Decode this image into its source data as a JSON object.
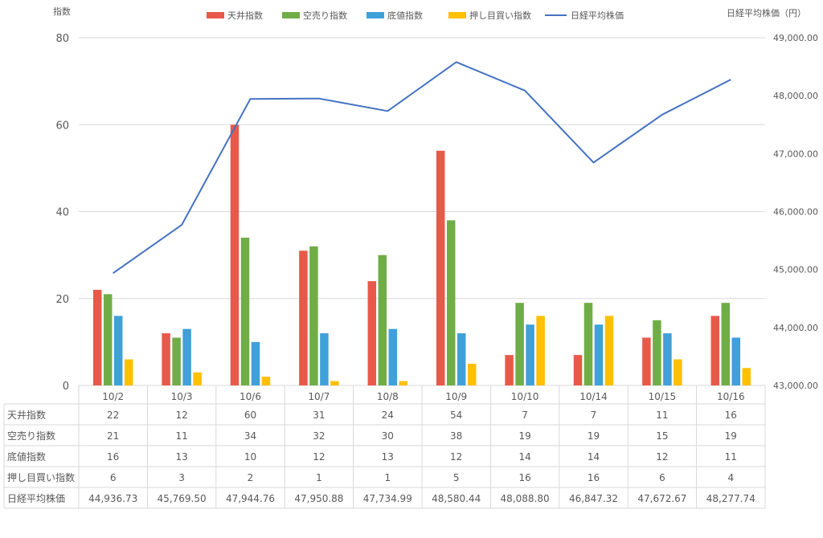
{
  "chart_data": {
    "type": "bar",
    "categories": [
      "10/2",
      "10/3",
      "10/6",
      "10/7",
      "10/8",
      "10/9",
      "10/10",
      "10/14",
      "10/15",
      "10/16"
    ],
    "y_left": {
      "label": "指数",
      "min": 0,
      "max": 80,
      "ticks": [
        "0",
        "20",
        "40",
        "60",
        "80"
      ]
    },
    "y_right": {
      "label": "日経平均株価（円）",
      "min": 43000,
      "max": 49000,
      "ticks": [
        "43,000.00",
        "44,000.00",
        "45,000.00",
        "46,000.00",
        "47,000.00",
        "48,000.00",
        "49,000.00"
      ]
    },
    "series": [
      {
        "name": "天井指数",
        "type": "bar",
        "color": "#e8594a",
        "values": [
          22,
          12,
          60,
          31,
          24,
          54,
          7,
          7,
          11,
          16
        ]
      },
      {
        "name": "空売り指数",
        "type": "bar",
        "color": "#70ad47",
        "values": [
          21,
          11,
          34,
          32,
          30,
          38,
          19,
          19,
          15,
          19
        ]
      },
      {
        "name": "底値指数",
        "type": "bar",
        "color": "#40a0d8",
        "values": [
          16,
          13,
          10,
          12,
          13,
          12,
          14,
          14,
          12,
          11
        ]
      },
      {
        "name": "押し目買い指数",
        "type": "bar",
        "color": "#ffc000",
        "values": [
          6,
          3,
          2,
          1,
          1,
          5,
          16,
          16,
          6,
          4
        ]
      },
      {
        "name": "日経平均株価",
        "type": "line",
        "color": "#4472c4",
        "axis": "right",
        "values": [
          44936.73,
          45769.5,
          47944.76,
          47950.88,
          47734.99,
          48580.44,
          48088.8,
          46847.32,
          47672.67,
          48277.74
        ]
      }
    ],
    "table": {
      "rows": [
        {
          "label": "天井指数",
          "cells": [
            "22",
            "12",
            "60",
            "31",
            "24",
            "54",
            "7",
            "7",
            "11",
            "16"
          ]
        },
        {
          "label": "空売り指数",
          "cells": [
            "21",
            "11",
            "34",
            "32",
            "30",
            "38",
            "19",
            "19",
            "15",
            "19"
          ]
        },
        {
          "label": "底値指数",
          "cells": [
            "16",
            "13",
            "10",
            "12",
            "13",
            "12",
            "14",
            "14",
            "12",
            "11"
          ]
        },
        {
          "label": "押し目買い指数",
          "cells": [
            "6",
            "3",
            "2",
            "1",
            "1",
            "5",
            "16",
            "16",
            "6",
            "4"
          ]
        },
        {
          "label": "日経平均株価",
          "cells": [
            "44,936.73",
            "45,769.50",
            "47,944.76",
            "47,950.88",
            "47,734.99",
            "48,580.44",
            "48,088.80",
            "46,847.32",
            "47,672.67",
            "48,277.74"
          ]
        }
      ]
    },
    "legend_position": "top",
    "grid": true
  }
}
